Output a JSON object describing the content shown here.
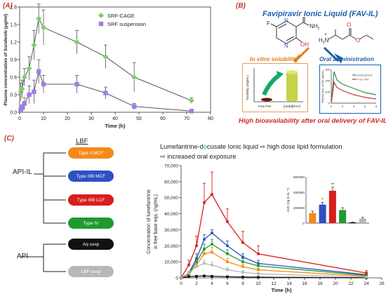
{
  "panels": {
    "a": {
      "letter": "(A)"
    },
    "b": {
      "letter": "(B)",
      "title": "Favipiravir Ionic Liquid (FAV-IL)",
      "in_vitro_label": "In vitro solubility",
      "oral_label": "Oral administration",
      "conclusion": "High bioavailability after oral delivery of FAV-IL.",
      "mol_labels": {
        "F": "F",
        "N": "N",
        "NH2": "NH",
        "NH2_sub": "2",
        "OH": "OH",
        "O": "O",
        "H3N": "H",
        "H3N_sub": "3",
        "H3N_N": "N",
        "plus": "+"
      },
      "solubility_chart": {
        "ylabel": "Solubility (mg/mL)",
        "categories": [
          "Free FAV",
          "[AlaEt][FAV]"
        ]
      },
      "pk_chart": {
        "ylabel": "Plasma conc. of FAV (µg/mL)",
        "legend": [
          "[AlaEt][FAV]",
          "Free FAV"
        ],
        "yticks": [
          "300",
          "200",
          "100",
          "0"
        ],
        "xticks": [
          "0",
          "2",
          "4",
          "6",
          "8"
        ],
        "colors": [
          "#2e8b57",
          "#c0392b"
        ]
      }
    },
    "c": {
      "letter": "(C)",
      "lbf_label": "LBF",
      "headline_line1_pre": "Lumefantrine-d",
      "headline_o": "o",
      "headline_line1_post": "cusate Ionic liquid ⇨ high dose lipid formulation",
      "headline_line2": "⇨ increased oral exposure",
      "api_il_label": "API-IL",
      "api_label": "API",
      "formulations": [
        {
          "label": "Type II MCF",
          "color": "#f28a1a"
        },
        {
          "label": "Type IIIB MCF",
          "color": "#2f4fc4"
        },
        {
          "label": "Type IIIB LCF",
          "color": "#d91e1e"
        },
        {
          "label": "Type IV",
          "color": "#1f9a2f"
        },
        {
          "label": "Aq susp",
          "color": "#111111"
        },
        {
          "label": "LBF susp",
          "color": "#b8b8b8"
        }
      ],
      "inset": {
        "ylabel": "AUC (ng.h.mL⁻¹)",
        "yticks": [
          "600000",
          "400000",
          "200000",
          "0"
        ],
        "ylim": [
          0,
          600000
        ],
        "values": [
          130000,
          240000,
          420000,
          170000,
          10000,
          60000
        ],
        "errors": [
          25000,
          30000,
          45000,
          30000,
          5000,
          15000
        ],
        "colors": [
          "#f28a1a",
          "#2f4fc4",
          "#d91e1e",
          "#1f9a2f",
          "#111111",
          "#b8b8b8"
        ],
        "stars": [
          "",
          "*",
          "**",
          "",
          "",
          ""
        ]
      }
    }
  },
  "chart_data": [
    {
      "type": "line",
      "panel": "A",
      "xlabel": "Time (h)",
      "ylabel": "Plasma concentration of Sorafenib (μg/ml)",
      "xlim": [
        0,
        80
      ],
      "ylim": [
        0,
        1.8
      ],
      "xticks": [
        "0",
        "10",
        "20",
        "30",
        "40",
        "50",
        "60",
        "70",
        "80"
      ],
      "yticks": [
        "0.0",
        "0.3",
        "0.6",
        "0.9",
        "1.2",
        "1.5",
        "1.8"
      ],
      "series": [
        {
          "name": "SRF-CAGE",
          "color": "#7ccf6a",
          "marker": "diamond",
          "x": [
            0.5,
            1,
            2,
            4,
            6,
            8,
            10,
            24,
            36,
            48,
            72
          ],
          "y": [
            0.35,
            0.4,
            0.6,
            0.75,
            1.15,
            1.6,
            1.45,
            1.2,
            0.95,
            0.6,
            0.2
          ],
          "err": [
            0.15,
            0.15,
            0.15,
            0.2,
            0.25,
            0.25,
            0.3,
            0.2,
            0.2,
            0.25,
            0.05
          ]
        },
        {
          "name": "SRF suspension",
          "color": "#a17ce6",
          "marker": "square",
          "x": [
            0.5,
            1,
            2,
            4,
            6,
            8,
            10,
            24,
            36,
            48,
            72
          ],
          "y": [
            0.05,
            0.08,
            0.15,
            0.3,
            0.35,
            0.7,
            0.48,
            0.48,
            0.33,
            0.1,
            0.02
          ],
          "err": [
            0.03,
            0.05,
            0.1,
            0.15,
            0.2,
            0.2,
            0.15,
            0.15,
            0.1,
            0.05,
            0.01
          ]
        }
      ]
    },
    {
      "type": "line",
      "panel": "C",
      "xlabel": "Time (h)",
      "ylabel": "Concentration of lumefantrine in free base eqs. (ng/mL)",
      "xlim": [
        0,
        26
      ],
      "ylim": [
        0,
        70000
      ],
      "xticks": [
        "0",
        "2",
        "4",
        "6",
        "8",
        "10",
        "12",
        "14",
        "16",
        "18",
        "20",
        "22",
        "24",
        "26"
      ],
      "yticks": [
        "0",
        "10,000",
        "20,000",
        "30,000",
        "40,000",
        "50,000",
        "60,000",
        "70,000"
      ],
      "series": [
        {
          "name": "Type II MCF",
          "color": "#f28a1a",
          "x": [
            0,
            1,
            2,
            3,
            4,
            6,
            8,
            10,
            24
          ],
          "y": [
            0,
            2000,
            8000,
            15000,
            16000,
            10000,
            7000,
            5000,
            1000
          ],
          "err": [
            0,
            1000,
            2000,
            3000,
            3000,
            2000,
            1500,
            1000,
            300
          ]
        },
        {
          "name": "Type IIIB MCF",
          "color": "#2f4fc4",
          "x": [
            0,
            1,
            2,
            3,
            4,
            6,
            8,
            10,
            24
          ],
          "y": [
            0,
            3000,
            12000,
            24000,
            28000,
            20000,
            13000,
            9000,
            2000
          ],
          "err": [
            0,
            1000,
            3000,
            3000,
            2000,
            3000,
            2000,
            2000,
            500
          ]
        },
        {
          "name": "Type IIIB LCF",
          "color": "#d91e1e",
          "x": [
            0,
            1,
            2,
            3,
            4,
            6,
            8,
            10,
            24
          ],
          "y": [
            0,
            8000,
            20000,
            47000,
            52000,
            35000,
            22000,
            15000,
            3000
          ],
          "err": [
            0,
            3000,
            6000,
            12000,
            14000,
            8000,
            7000,
            5000,
            1500
          ]
        },
        {
          "name": "Type IV",
          "color": "#1f9a2f",
          "x": [
            0,
            1,
            2,
            3,
            4,
            6,
            8,
            10,
            24
          ],
          "y": [
            0,
            2500,
            10000,
            18000,
            21000,
            15000,
            10000,
            7500,
            1500
          ],
          "err": [
            0,
            800,
            2000,
            3000,
            3000,
            2500,
            2000,
            1500,
            400
          ]
        },
        {
          "name": "Aq susp",
          "color": "#111111",
          "x": [
            0,
            1,
            2,
            3,
            4,
            6,
            8,
            10,
            24
          ],
          "y": [
            0,
            800,
            1000,
            1200,
            1000,
            700,
            500,
            400,
            100
          ],
          "err": [
            0,
            300,
            300,
            300,
            300,
            200,
            150,
            100,
            50
          ]
        },
        {
          "name": "LBF susp",
          "color": "#b8b8b8",
          "x": [
            0,
            1,
            2,
            3,
            4,
            6,
            8,
            10,
            24
          ],
          "y": [
            0,
            3000,
            7000,
            9000,
            8000,
            5000,
            3500,
            2500,
            500
          ],
          "err": [
            0,
            1000,
            1500,
            2000,
            2000,
            1500,
            1000,
            800,
            200
          ]
        }
      ]
    }
  ]
}
